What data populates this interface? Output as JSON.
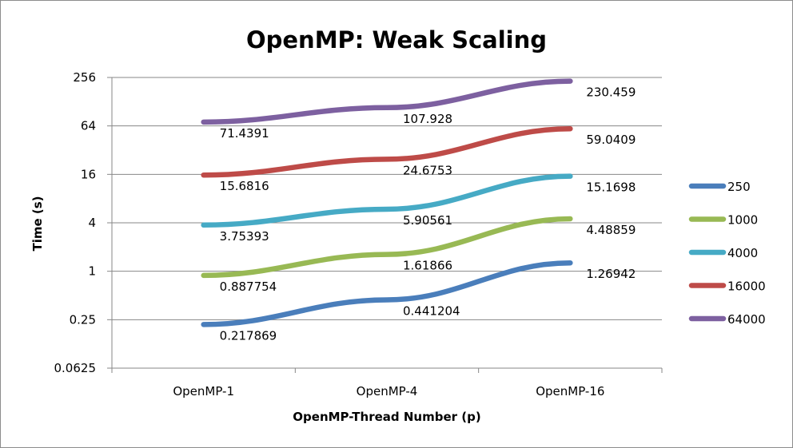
{
  "chart_data": {
    "type": "line",
    "title": "OpenMP: Weak Scaling",
    "xlabel": "OpenMP-Thread Number (p)",
    "ylabel": "Time (s)",
    "yscale": "log2",
    "ylim": [
      0.0625,
      256
    ],
    "yticks": [
      "0.0625",
      "0.25",
      "1",
      "4",
      "16",
      "64",
      "256"
    ],
    "grid": true,
    "legend": "right",
    "categories": [
      "OpenMP-1",
      "OpenMP-4",
      "OpenMP-16"
    ],
    "series": [
      {
        "name": "250",
        "color": "#4a7ebb",
        "values": [
          0.217869,
          0.441204,
          1.26942
        ],
        "labels": [
          "0.217869",
          "0.441204",
          "1.26942"
        ]
      },
      {
        "name": "1000",
        "color": "#98b954",
        "values": [
          0.887754,
          1.61866,
          4.48859
        ],
        "labels": [
          "0.887754",
          "1.61866",
          "4.48859"
        ]
      },
      {
        "name": "4000",
        "color": "#46aac5",
        "values": [
          3.75393,
          5.90561,
          15.1698
        ],
        "labels": [
          "3.75393",
          "5.90561",
          "15.1698"
        ]
      },
      {
        "name": "16000",
        "color": "#be4b48",
        "values": [
          15.6816,
          24.6753,
          59.0409
        ],
        "labels": [
          "15.6816",
          "24.6753",
          "59.0409"
        ]
      },
      {
        "name": "64000",
        "color": "#7d60a0",
        "values": [
          71.4391,
          107.928,
          230.459
        ],
        "labels": [
          "71.4391",
          "107.928",
          "230.459"
        ]
      }
    ]
  }
}
